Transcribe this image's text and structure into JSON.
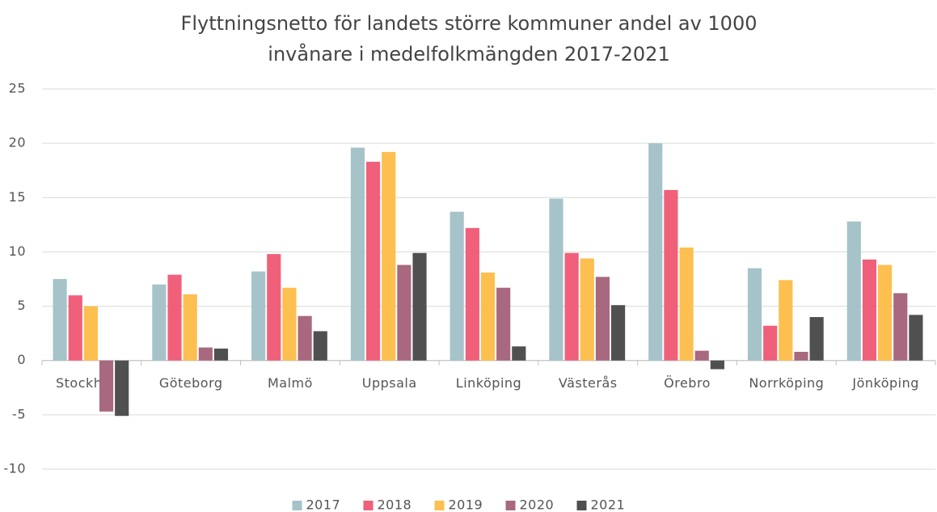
{
  "chart_data": {
    "type": "bar",
    "title": "Flyttningsnetto för landets större kommuner andel av 1000 invånare i medelfolkmängden 2017-2021",
    "categories": [
      "Stockholm",
      "Göteborg",
      "Malmö",
      "Uppsala",
      "Linköping",
      "Västerås",
      "Örebro",
      "Norrköping",
      "Jönköping"
    ],
    "series": [
      {
        "name": "2017",
        "color": "#a5c3c9",
        "values": [
          7.5,
          7.0,
          8.2,
          19.6,
          13.7,
          14.9,
          20.0,
          8.5,
          12.8
        ]
      },
      {
        "name": "2018",
        "color": "#f0607a",
        "values": [
          6.0,
          7.9,
          9.8,
          18.3,
          12.2,
          9.9,
          15.7,
          3.2,
          9.3
        ]
      },
      {
        "name": "2019",
        "color": "#fdbf4f",
        "values": [
          5.0,
          6.1,
          6.7,
          19.2,
          8.1,
          9.4,
          10.4,
          7.4,
          8.8
        ]
      },
      {
        "name": "2020",
        "color": "#a8687f",
        "values": [
          -4.7,
          1.2,
          4.1,
          8.8,
          6.7,
          7.7,
          0.9,
          0.8,
          6.2
        ]
      },
      {
        "name": "2021",
        "color": "#505050",
        "values": [
          -5.1,
          1.1,
          2.7,
          9.9,
          1.3,
          5.1,
          -0.8,
          4.0,
          4.2
        ]
      }
    ],
    "ylim": [
      -10,
      25
    ],
    "yticks": [
      -10,
      -5,
      0,
      5,
      10,
      15,
      20,
      25
    ],
    "grid": true,
    "legend": "bottom"
  }
}
